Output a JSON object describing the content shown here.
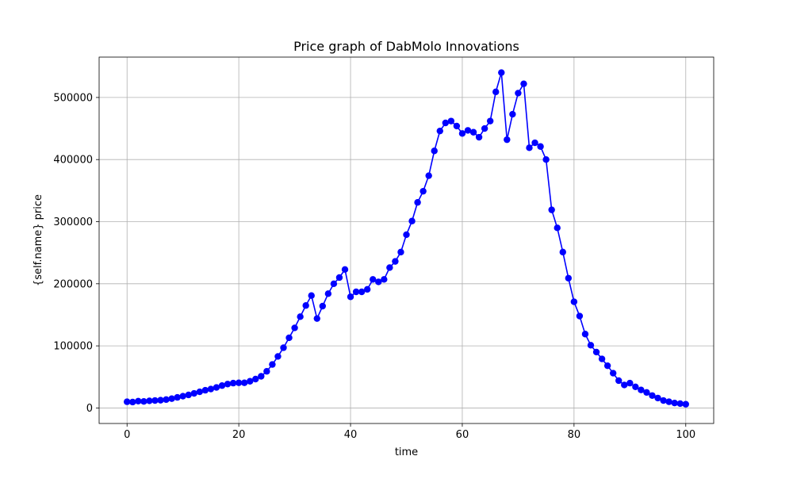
{
  "chart_data": {
    "type": "line",
    "title": "Price graph of DabMolo Innovations",
    "xlabel": "time",
    "ylabel": "{self.name} price",
    "xlim": [
      -5,
      105
    ],
    "ylim": [
      -25000,
      565000
    ],
    "xticks": [
      0,
      20,
      40,
      60,
      80,
      100
    ],
    "yticks": [
      0,
      100000,
      200000,
      300000,
      400000,
      500000
    ],
    "grid": true,
    "line_color": "#0000ff",
    "marker": "circle",
    "series": [
      {
        "x": [
          0,
          1,
          2,
          3,
          4,
          5,
          6,
          7,
          8,
          9,
          10,
          11,
          12,
          13,
          14,
          15,
          16,
          17,
          18,
          19,
          20,
          21,
          22,
          23,
          24,
          25,
          26,
          27,
          28,
          29,
          30,
          31,
          32,
          33,
          34,
          35,
          36,
          37,
          38,
          39,
          40,
          41,
          42,
          43,
          44,
          45,
          46,
          47,
          48,
          49,
          50,
          51,
          52,
          53,
          54,
          55,
          56,
          57,
          58,
          59,
          60,
          61,
          62,
          63,
          64,
          65,
          66,
          67,
          68,
          69,
          70,
          71,
          72,
          73,
          74,
          75,
          76,
          77,
          78,
          79,
          80,
          81,
          82,
          83,
          84,
          85,
          86,
          87,
          88,
          89,
          90,
          91,
          92,
          93,
          94,
          95,
          96,
          97,
          98,
          99,
          100
        ],
        "values": [
          10000,
          9500,
          11000,
          10500,
          11500,
          12000,
          12500,
          13500,
          15000,
          17000,
          19000,
          21000,
          23500,
          26000,
          28500,
          30500,
          33000,
          36000,
          38500,
          40000,
          40500,
          40500,
          43000,
          46500,
          51000,
          59000,
          70000,
          83000,
          97000,
          113000,
          129000,
          147000,
          165000,
          181000,
          144000,
          164000,
          184000,
          200000,
          210000,
          223000,
          179000,
          187000,
          187000,
          191000,
          207000,
          203000,
          207000,
          226000,
          236000,
          251000,
          279000,
          301000,
          331000,
          349000,
          374000,
          414000,
          446000,
          459000,
          462000,
          454000,
          442000,
          447000,
          444000,
          436000,
          450000,
          462000,
          509000,
          540000,
          432000,
          473000,
          507000,
          522000,
          419000,
          427000,
          421000,
          400000,
          319000,
          290000,
          251000,
          209000,
          171000,
          148000,
          119000,
          101000,
          90000,
          79000,
          68000,
          56000,
          44000,
          37000,
          40000,
          34000,
          29000,
          25000,
          20000,
          16000,
          12000,
          10000,
          8000,
          7000,
          6000
        ]
      }
    ]
  }
}
